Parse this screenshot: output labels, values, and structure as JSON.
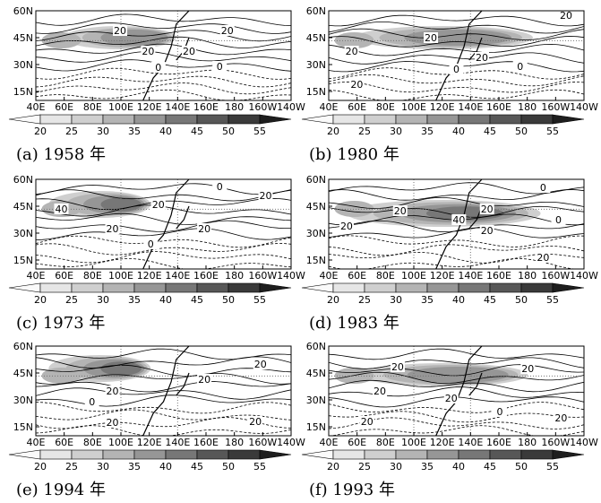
{
  "panels": [
    {
      "caption": "(a) 1958 年",
      "contour_labels": [
        "20",
        "20",
        "20",
        "20",
        "0",
        "0"
      ]
    },
    {
      "caption": "(b) 1980 年",
      "contour_labels": [
        "20",
        "20",
        "20",
        "20",
        "0",
        "0",
        "20"
      ]
    },
    {
      "caption": "(c) 1973 年",
      "contour_labels": [
        "40",
        "20",
        "20",
        "20",
        "0",
        "20",
        "0"
      ]
    },
    {
      "caption": "(d) 1983 年",
      "contour_labels": [
        "20",
        "20",
        "40",
        "20",
        "20",
        "0",
        "0",
        "20"
      ]
    },
    {
      "caption": "(e) 1994 年",
      "contour_labels": [
        "20",
        "20",
        "20",
        "0",
        "20",
        "20"
      ]
    },
    {
      "caption": "(f) 1993 年",
      "contour_labels": [
        "20",
        "20",
        "20",
        "20",
        "20",
        "0",
        "20"
      ]
    }
  ],
  "y_labels": [
    "60N",
    "45N",
    "30N",
    "15N"
  ],
  "x_labels": [
    "40E",
    "60E",
    "80E",
    "100E",
    "120E",
    "140E",
    "160E",
    "180",
    "160W",
    "140W"
  ],
  "colorbar_labels": [
    "20",
    "25",
    "30",
    "35",
    "40",
    "45",
    "50",
    "55"
  ]
}
